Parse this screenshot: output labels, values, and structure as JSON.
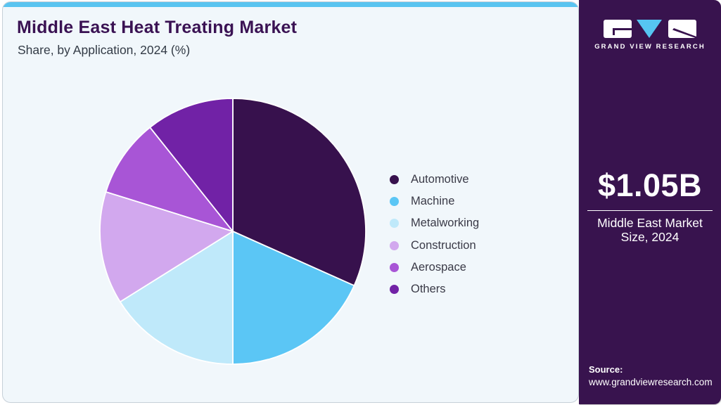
{
  "header": {
    "title": "Middle East Heat Treating Market",
    "subtitle": "Share, by Application, 2024 (%)"
  },
  "brand": {
    "name": "GRAND VIEW RESEARCH",
    "logo_blue": "#56c5f2",
    "logo_tile_color": "#ffffff"
  },
  "sidebar": {
    "bg_color": "#38134e",
    "market_size_value": "$1.05B",
    "market_size_label": "Middle East Market Size, 2024",
    "source_label": "Source:",
    "source_url": "www.grandviewresearch.com"
  },
  "chart_data": {
    "type": "pie",
    "title": "Middle East Heat Treating Market Share, by Application, 2024 (%)",
    "categories": [
      "Automotive",
      "Machine",
      "Metalworking",
      "Construction",
      "Aerospace",
      "Others"
    ],
    "values": [
      31.7,
      18.3,
      16.1,
      13.7,
      9.5,
      10.7
    ],
    "colors": [
      "#37114d",
      "#5bc6f5",
      "#bfe9fa",
      "#d2a8ee",
      "#a855d6",
      "#7122a6"
    ],
    "start_angle_deg": 0,
    "direction": "clockwise",
    "legend_position": "right",
    "slice_separator_color": "#ffffff"
  }
}
